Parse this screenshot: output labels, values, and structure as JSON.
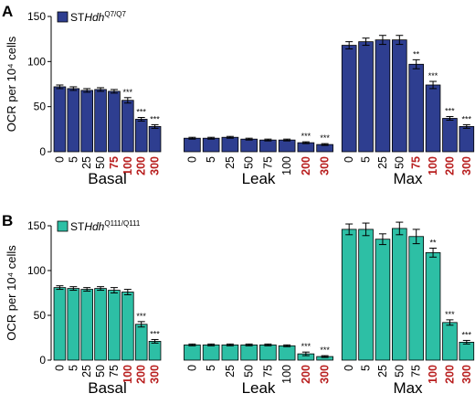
{
  "colors": {
    "panel_a_bar": "#2e3e90",
    "panel_b_bar": "#2dbfa5",
    "highlight_label": "#b81e1e",
    "normal_label": "#000000"
  },
  "chart_data": [
    {
      "type": "bar",
      "panel_letter": "A",
      "legend": {
        "prefix": "ST",
        "italic": "Hdh",
        "sup": "Q7/Q7"
      },
      "ylabel": "OCR per 10⁴ cells",
      "ylim": [
        0,
        150
      ],
      "yticks": [
        "0",
        "50",
        "100",
        "150"
      ],
      "groups": [
        {
          "name": "Basal",
          "categories": [
            "0",
            "5",
            "25",
            "50",
            "75",
            "100",
            "200",
            "300"
          ],
          "values": [
            72,
            70,
            68,
            69,
            67,
            57,
            36,
            28
          ],
          "errors": [
            2,
            2,
            2,
            2,
            2,
            3,
            2,
            2
          ],
          "significance": [
            "",
            "",
            "",
            "",
            "",
            "***",
            "***",
            "***"
          ],
          "highlight": [
            false,
            false,
            false,
            false,
            true,
            true,
            true,
            true
          ]
        },
        {
          "name": "Leak",
          "categories": [
            "0",
            "5",
            "25",
            "50",
            "75",
            "100",
            "200",
            "300"
          ],
          "values": [
            15,
            15,
            16,
            14,
            13,
            13,
            10,
            8
          ],
          "errors": [
            1,
            1,
            1,
            1,
            1,
            1,
            1,
            1
          ],
          "significance": [
            "",
            "",
            "",
            "",
            "",
            "",
            "***",
            "***"
          ],
          "highlight": [
            false,
            false,
            false,
            false,
            false,
            false,
            true,
            true
          ]
        },
        {
          "name": "Max",
          "categories": [
            "0",
            "5",
            "25",
            "50",
            "75",
            "100",
            "200",
            "300"
          ],
          "values": [
            118,
            122,
            124,
            124,
            97,
            74,
            37,
            28
          ],
          "errors": [
            4,
            4,
            5,
            5,
            5,
            4,
            2,
            2
          ],
          "significance": [
            "",
            "",
            "",
            "",
            "**",
            "***",
            "***",
            "***"
          ],
          "highlight": [
            false,
            false,
            false,
            false,
            true,
            true,
            true,
            true
          ]
        }
      ]
    },
    {
      "type": "bar",
      "panel_letter": "B",
      "legend": {
        "prefix": "ST",
        "italic": "Hdh",
        "sup": "Q111/Q111"
      },
      "ylabel": "OCR per 10⁴ cells",
      "ylim": [
        0,
        150
      ],
      "yticks": [
        "0",
        "50",
        "100",
        "150"
      ],
      "groups": [
        {
          "name": "Basal",
          "categories": [
            "0",
            "5",
            "25",
            "50",
            "75",
            "100",
            "200",
            "300"
          ],
          "values": [
            81,
            80,
            79,
            80,
            78,
            76,
            40,
            21
          ],
          "errors": [
            2,
            2,
            2,
            2,
            3,
            3,
            3,
            2
          ],
          "significance": [
            "",
            "",
            "",
            "",
            "",
            "",
            "***",
            "***"
          ],
          "highlight": [
            false,
            false,
            false,
            false,
            false,
            true,
            true,
            true
          ]
        },
        {
          "name": "Leak",
          "categories": [
            "0",
            "5",
            "25",
            "50",
            "75",
            "100",
            "200",
            "300"
          ],
          "values": [
            17,
            17,
            17,
            17,
            17,
            16,
            7,
            4
          ],
          "errors": [
            1,
            1,
            1,
            1,
            1,
            1,
            2,
            1
          ],
          "significance": [
            "",
            "",
            "",
            "",
            "",
            "",
            "***",
            "***"
          ],
          "highlight": [
            false,
            false,
            false,
            false,
            false,
            false,
            true,
            true
          ]
        },
        {
          "name": "Max",
          "categories": [
            "0",
            "5",
            "25",
            "50",
            "75",
            "100",
            "200",
            "300"
          ],
          "values": [
            146,
            146,
            135,
            147,
            138,
            120,
            42,
            20
          ],
          "errors": [
            6,
            7,
            6,
            7,
            8,
            5,
            3,
            2
          ],
          "significance": [
            "",
            "",
            "",
            "",
            "",
            "**",
            "***",
            "***"
          ],
          "highlight": [
            false,
            false,
            false,
            false,
            false,
            true,
            true,
            true
          ]
        }
      ]
    }
  ]
}
